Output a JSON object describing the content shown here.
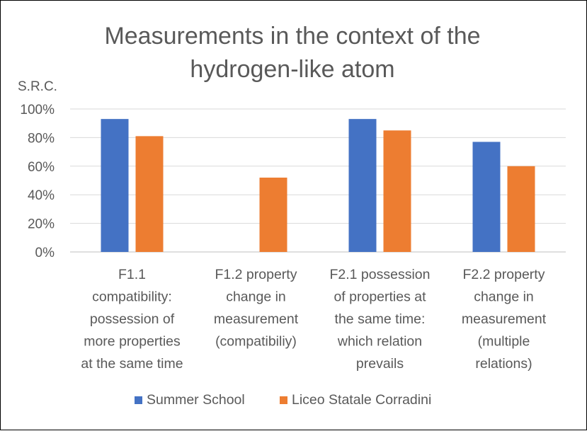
{
  "chart_data": {
    "type": "bar",
    "title_lines": [
      "Measurements in the context of the",
      "hydrogen-like atom"
    ],
    "ylabel": "S.R.C.",
    "xlabel": "",
    "ylim": [
      0,
      100
    ],
    "y_ticks": [
      "0%",
      "20%",
      "40%",
      "60%",
      "80%",
      "100%"
    ],
    "y_tick_values": [
      0,
      20,
      40,
      60,
      80,
      100
    ],
    "grid": true,
    "legend_position": "bottom",
    "categories": [
      [
        "F1.1",
        "compatibility:",
        "possession of",
        "more properties",
        "at the same time"
      ],
      [
        "F1.2 property",
        "change in",
        "measurement",
        "(compatibiliy)"
      ],
      [
        "F2.1 possession",
        "of properties at",
        "the same time:",
        "which relation",
        "prevails"
      ],
      [
        "F2.2 property",
        "change in",
        "measurement",
        "(multiple",
        "relations)"
      ]
    ],
    "series": [
      {
        "name": "Summer School",
        "color": "#4472C4",
        "values": [
          93,
          null,
          93,
          77
        ]
      },
      {
        "name": "Liceo Statale Corradini",
        "color": "#ED7D31",
        "values": [
          81,
          52,
          85,
          60
        ]
      }
    ]
  }
}
